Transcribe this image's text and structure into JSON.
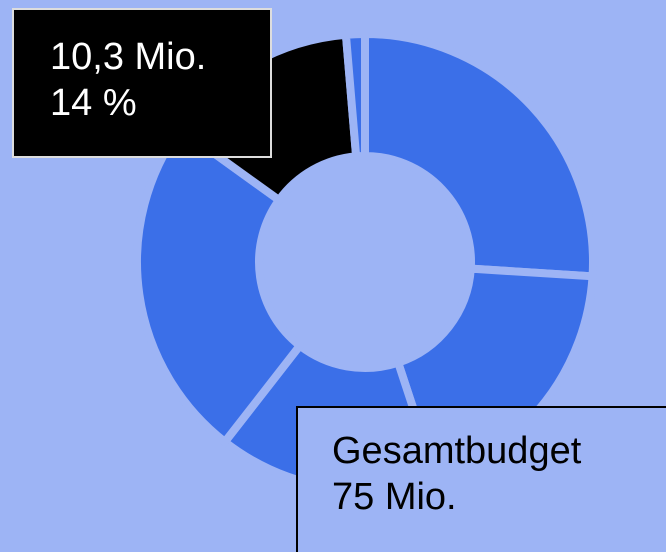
{
  "chart_data": {
    "type": "donut",
    "values": [
      19.5,
      14.2,
      11.7,
      18.3,
      10.3,
      1
    ],
    "colors": [
      "#3b6fe8",
      "#3b6fe8",
      "#3b6fe8",
      "#3b6fe8",
      "#000000",
      "#3b6fe8"
    ],
    "annotations": [
      {
        "lines": [
          "10,3 Mio.",
          "14 %"
        ]
      },
      {
        "lines": [
          "Gesamtbudget",
          "75 Mio."
        ]
      }
    ]
  }
}
